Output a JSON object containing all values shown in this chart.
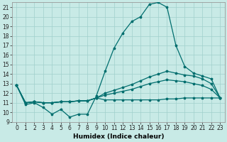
{
  "xlabel": "Humidex (Indice chaleur)",
  "background_color": "#c8eae6",
  "line_color": "#006e6e",
  "grid_color": "#a0d0cc",
  "x_values": [
    0,
    1,
    2,
    3,
    4,
    5,
    6,
    7,
    8,
    9,
    10,
    11,
    12,
    13,
    14,
    15,
    16,
    17,
    18,
    19,
    20,
    21,
    22,
    23
  ],
  "line1": [
    12.8,
    10.8,
    11.0,
    10.5,
    9.8,
    10.3,
    9.5,
    9.8,
    9.8,
    11.7,
    14.3,
    16.7,
    18.3,
    19.5,
    20.0,
    21.3,
    21.5,
    21.0,
    17.0,
    14.8,
    14.1,
    13.8,
    13.5,
    11.5
  ],
  "line2": [
    12.8,
    11.0,
    11.1,
    11.0,
    11.0,
    11.1,
    11.1,
    11.2,
    11.2,
    11.5,
    11.8,
    12.0,
    12.2,
    12.4,
    12.7,
    13.0,
    13.2,
    13.4,
    13.3,
    13.2,
    13.0,
    12.8,
    12.4,
    11.5
  ],
  "line3": [
    12.8,
    11.0,
    11.1,
    11.0,
    11.0,
    11.1,
    11.1,
    11.2,
    11.2,
    11.5,
    12.0,
    12.3,
    12.6,
    12.9,
    13.3,
    13.7,
    14.0,
    14.3,
    14.1,
    13.9,
    13.8,
    13.5,
    13.0,
    11.5
  ],
  "line4": [
    12.8,
    11.0,
    11.1,
    11.0,
    11.0,
    11.1,
    11.1,
    11.2,
    11.2,
    11.5,
    11.3,
    11.3,
    11.3,
    11.3,
    11.3,
    11.3,
    11.3,
    11.4,
    11.4,
    11.5,
    11.5,
    11.5,
    11.5,
    11.5
  ],
  "ylim": [
    9,
    21.5
  ],
  "xlim": [
    -0.5,
    23.5
  ],
  "yticks": [
    9,
    10,
    11,
    12,
    13,
    14,
    15,
    16,
    17,
    18,
    19,
    20,
    21
  ],
  "xticks": [
    0,
    1,
    2,
    3,
    4,
    5,
    6,
    7,
    8,
    9,
    10,
    11,
    12,
    13,
    14,
    15,
    16,
    17,
    18,
    19,
    20,
    21,
    22,
    23
  ],
  "tick_fontsize": 5.5,
  "label_fontsize": 6.5
}
